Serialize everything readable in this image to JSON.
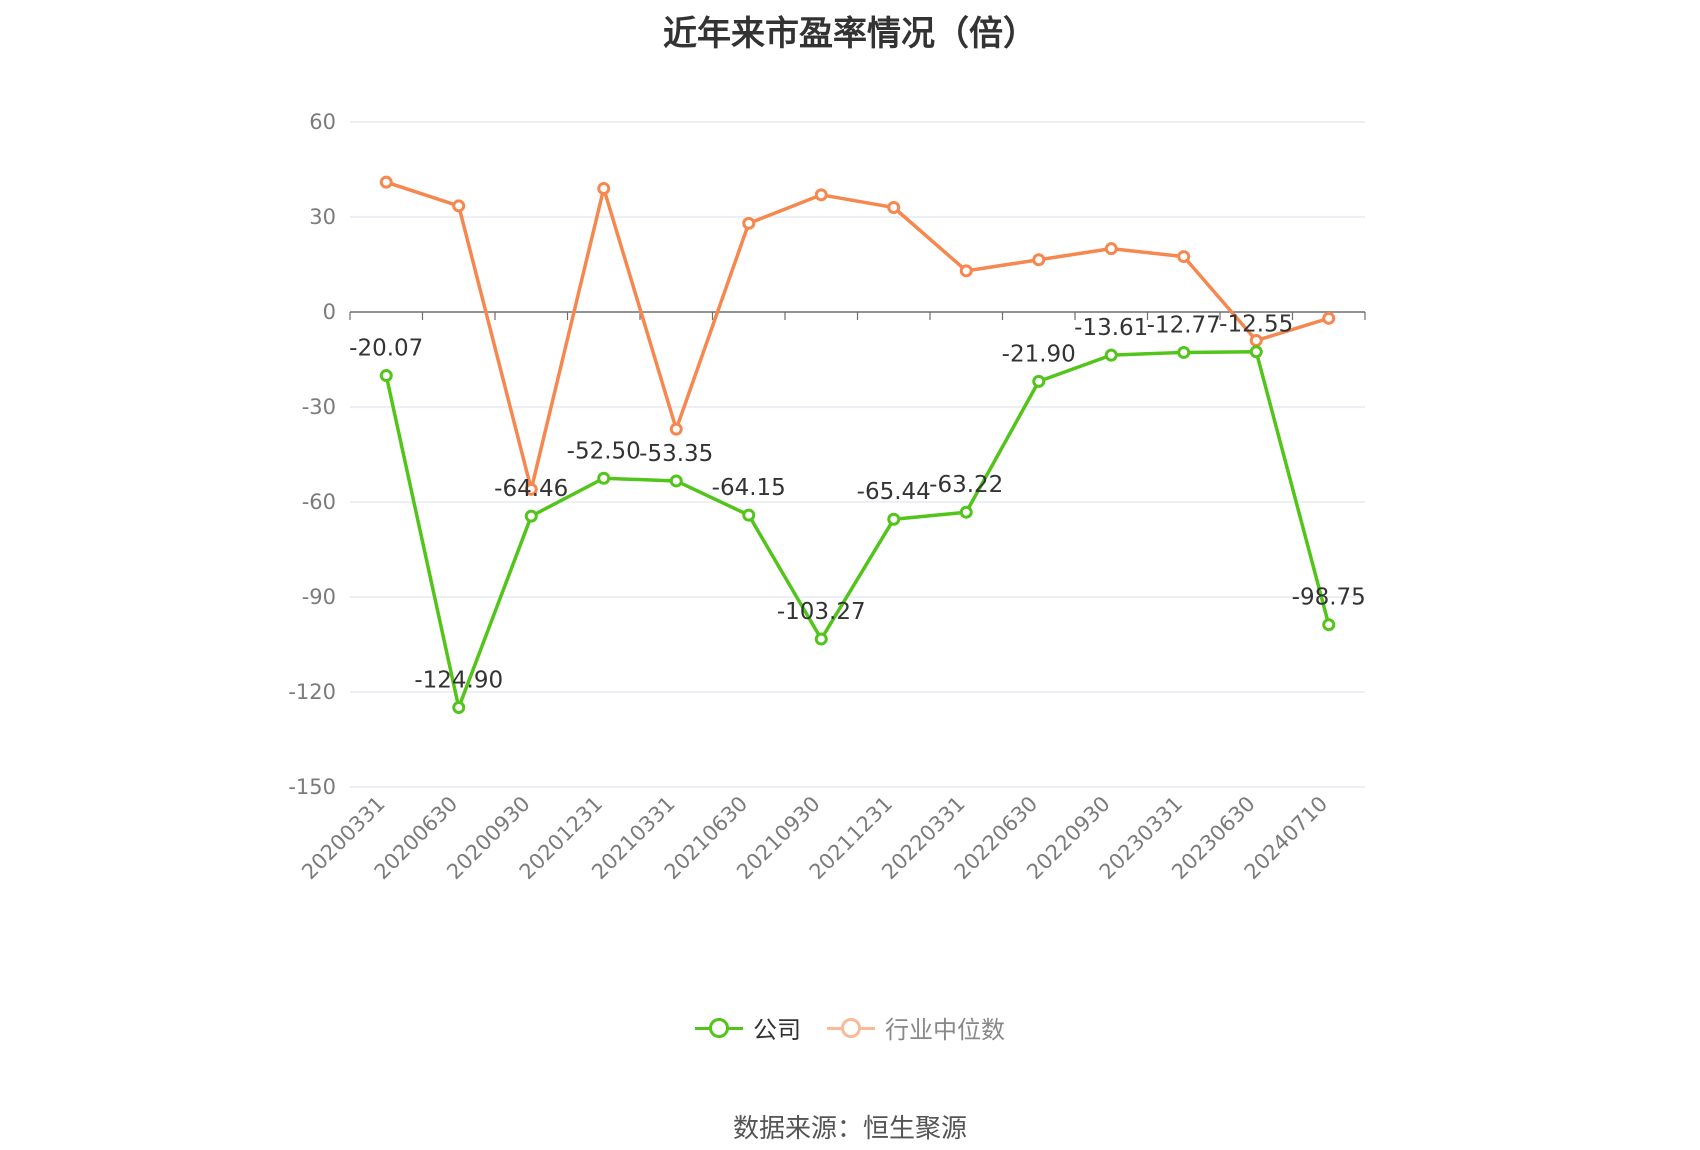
{
  "chart_data": {
    "type": "line",
    "title": "近年来市盈率情况（倍）",
    "categories": [
      "20200331",
      "20200630",
      "20200930",
      "20201231",
      "20210331",
      "20210630",
      "20210930",
      "20211231",
      "20220331",
      "20220630",
      "20220930",
      "20230331",
      "20230630",
      "20240710"
    ],
    "ylim": [
      -150,
      60
    ],
    "yticks": [
      60,
      30,
      0,
      -30,
      -60,
      -90,
      -120,
      -150
    ],
    "grid": true,
    "legend_position": "bottom",
    "series": [
      {
        "name": "公司",
        "color": "#52c41a",
        "values": [
          -20.07,
          -124.9,
          -64.46,
          -52.5,
          -53.35,
          -64.15,
          -103.27,
          -65.44,
          -63.22,
          -21.9,
          -13.61,
          -12.77,
          -12.55,
          -98.75
        ],
        "labels": [
          "-20.07",
          "-124.90",
          "-64.46",
          "-52.50",
          "-53.35",
          "-64.15",
          "-103.27",
          "-65.44",
          "-63.22",
          "-21.90",
          "-13.61",
          "-12.77",
          "-12.55",
          "-98.75"
        ]
      },
      {
        "name": "行业中位数",
        "color": "#f5874f",
        "values": [
          41,
          33.5,
          -56,
          39,
          -37,
          28,
          37,
          33,
          13,
          16.5,
          20,
          17.5,
          -9,
          -2
        ]
      }
    ]
  },
  "legend": {
    "company": "公司",
    "industry": "行业中位数"
  },
  "source": "数据来源：恒生聚源"
}
